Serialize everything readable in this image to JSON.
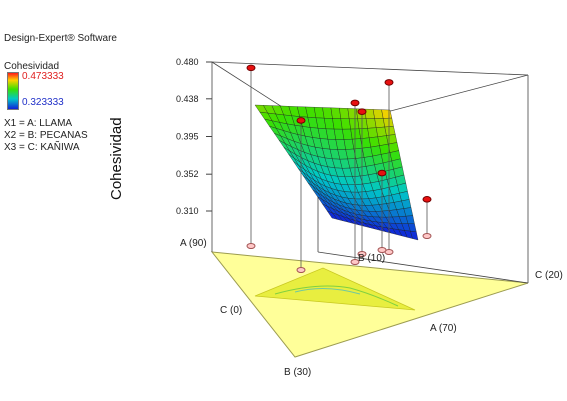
{
  "header": {
    "software": "Design-Expert® Software"
  },
  "legend": {
    "title": "Cohesividad",
    "max_label": "0.473333",
    "min_label": "0.323333",
    "max_color": "#e02020",
    "min_color": "#2030c8"
  },
  "factors": [
    "X1 = A: LLAMA",
    "X2 = B: PECANAS",
    "X3 = C: KAÑIWA"
  ],
  "chart_data": {
    "type": "surface",
    "ylabel": "Cohesividad",
    "zlim": [
      0.31,
      0.48
    ],
    "z_ticks": [
      "0.480",
      "0.438",
      "0.395",
      "0.352",
      "0.310"
    ],
    "vertex_labels": {
      "a_top": "A (90)",
      "b_top": "B (10)",
      "c_right": "C (20)",
      "c_left": "C (0)",
      "a_right": "A (70)",
      "b_bottom": "B (30)"
    },
    "surface_range": [
      0.31,
      0.46
    ],
    "design_points": [
      0.4733,
      0.4567,
      0.4333,
      0.4233,
      0.4133,
      0.3533,
      0.3233
    ]
  }
}
